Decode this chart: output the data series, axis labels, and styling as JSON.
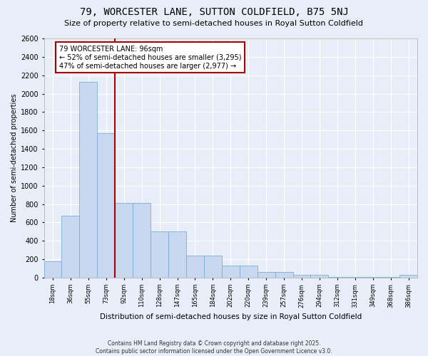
{
  "title": "79, WORCESTER LANE, SUTTON COLDFIELD, B75 5NJ",
  "subtitle": "Size of property relative to semi-detached houses in Royal Sutton Coldfield",
  "xlabel": "Distribution of semi-detached houses by size in Royal Sutton Coldfield",
  "ylabel": "Number of semi-detached properties",
  "categories": [
    "18sqm",
    "36sqm",
    "55sqm",
    "73sqm",
    "92sqm",
    "110sqm",
    "128sqm",
    "147sqm",
    "165sqm",
    "184sqm",
    "202sqm",
    "220sqm",
    "239sqm",
    "257sqm",
    "276sqm",
    "294sqm",
    "312sqm",
    "331sqm",
    "349sqm",
    "368sqm",
    "386sqm"
  ],
  "values": [
    180,
    670,
    2130,
    1570,
    810,
    810,
    500,
    500,
    240,
    240,
    130,
    130,
    60,
    60,
    35,
    35,
    10,
    10,
    5,
    5,
    30
  ],
  "bar_color": "#c8d8ee",
  "bar_edge_color": "#7bafd4",
  "vline_color": "#aa0000",
  "vline_xidx": 3,
  "annotation_text": "79 WORCESTER LANE: 96sqm\n← 52% of semi-detached houses are smaller (3,295)\n47% of semi-detached houses are larger (2,977) →",
  "annotation_box_color": "#ffffff",
  "annotation_box_edge": "#aa0000",
  "ylim": [
    0,
    2600
  ],
  "yticks": [
    0,
    200,
    400,
    600,
    800,
    1000,
    1200,
    1400,
    1600,
    1800,
    2000,
    2200,
    2400,
    2600
  ],
  "footer1": "Contains HM Land Registry data © Crown copyright and database right 2025.",
  "footer2": "Contains public sector information licensed under the Open Government Licence v3.0.",
  "background_color": "#e8eef8",
  "grid_color": "#ffffff"
}
